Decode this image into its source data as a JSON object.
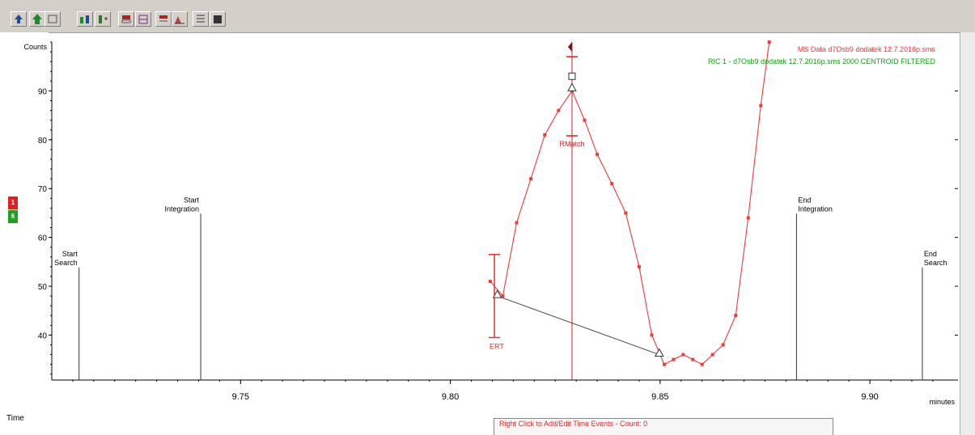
{
  "toolbar": {
    "buttons": [
      {
        "name": "peak-up-icon"
      },
      {
        "name": "green-arrow-icon"
      },
      {
        "name": "window-icon"
      },
      {
        "name": "peak-pair-icon"
      },
      {
        "name": "peak-split-icon"
      },
      {
        "name": "baseline-icon"
      },
      {
        "name": "scale-icon"
      },
      {
        "name": "grid-icon"
      },
      {
        "name": "integrate-icon"
      },
      {
        "name": "list-icon"
      },
      {
        "name": "table-icon"
      }
    ]
  },
  "sidebar": {
    "flag_top": "1",
    "flag_bottom": "6"
  },
  "lower_panel": {
    "text": "Right Click to Add/Edit Time Events - Count: 0"
  },
  "time_label": "Time",
  "chart_data": {
    "type": "line",
    "ylabel": "Counts",
    "xlabel": "minutes",
    "xlim": [
      9.705,
      9.921
    ],
    "ylim": [
      30.8,
      100
    ],
    "x_ticks": [
      9.75,
      9.8,
      9.85,
      9.9
    ],
    "x_tick_labels": [
      "9.75",
      "9.80",
      "9.85",
      "9.90"
    ],
    "y_ticks": [
      40,
      50,
      60,
      70,
      80,
      90
    ],
    "y_tick_labels": [
      "40",
      "50",
      "60",
      "70",
      "80",
      "90"
    ],
    "legend": [
      {
        "text": "MS Data d7Osb9 dodatek 12.7.2016p.sms",
        "color": "#ff3030"
      },
      {
        "text": "RIC 1 - d7Osb9 dodatek 12.7.2016p.sms 2000 CENTROID FILTERED",
        "color": "#10a010"
      }
    ],
    "series": [
      {
        "name": "MS Data d7Osb9 dodatek 12.7.2016p.sms",
        "color": "#ee3b3b",
        "x": [
          9.8095,
          9.8125,
          9.8158,
          9.8192,
          9.8225,
          9.8258,
          9.829,
          9.832,
          9.835,
          9.8385,
          9.8418,
          9.845,
          9.848,
          9.851,
          9.8532,
          9.8555,
          9.8578,
          9.86,
          9.8625,
          9.865,
          9.868,
          9.871,
          9.874,
          9.876
        ],
        "y": [
          51,
          48,
          63,
          72,
          81,
          86,
          90,
          84,
          77,
          71,
          65,
          54,
          40,
          34,
          35,
          36,
          35,
          34,
          36,
          38,
          44,
          64,
          87,
          100
        ]
      },
      {
        "name": "baseline",
        "color": "#555555",
        "x": [
          9.8112,
          9.8498
        ],
        "y": [
          48,
          36
        ]
      }
    ],
    "markers": [
      {
        "label_lines": [
          "Start",
          "Search"
        ],
        "x": 9.7115,
        "y_top": 53.5,
        "color": "#333333"
      },
      {
        "label_lines": [
          "Start",
          "Integration"
        ],
        "x": 9.7405,
        "y_top": 64.5,
        "color": "#333333"
      },
      {
        "label_lines": [
          "End",
          "Integration"
        ],
        "x": 9.8825,
        "y_top": 64.5,
        "color": "#333333"
      },
      {
        "label_lines": [
          "End",
          "Search"
        ],
        "x": 9.9125,
        "y_top": 53.5,
        "color": "#333333"
      }
    ],
    "rt_marker": {
      "x": 9.829,
      "label": "RMatch",
      "color": "#cc2222"
    },
    "ert_marker": {
      "x": 9.8105,
      "y_low": 39.5,
      "y_high": 56.5,
      "label": "ERT",
      "color": "#dd3333"
    }
  }
}
